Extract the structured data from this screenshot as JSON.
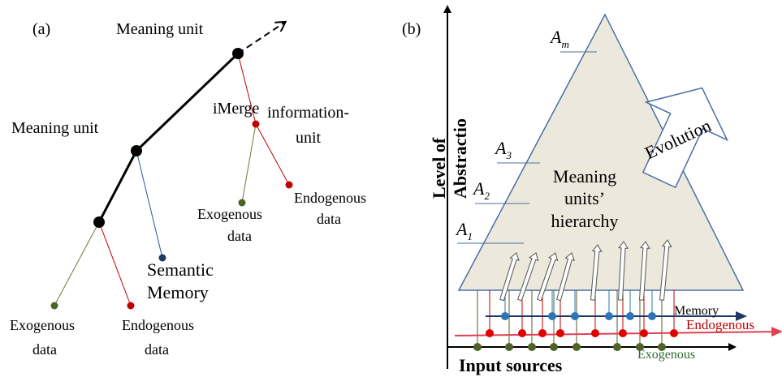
{
  "panel_a": {
    "label": "(a)",
    "top_meaning_unit": "Meaning unit",
    "left_meaning_unit": "Meaning unit",
    "imerge": "iMerge",
    "information_unit": [
      "information-",
      "unit"
    ],
    "endogenous_right": [
      "Endogenous",
      "data"
    ],
    "exogenous_right": [
      "Exogenous",
      "data"
    ],
    "semantic_memory": [
      "Semantic",
      "Memory"
    ],
    "exogenous_left": [
      "Exogenous",
      "data"
    ],
    "endogenous_left": [
      "Endogenous",
      "data"
    ]
  },
  "panel_b": {
    "label": "(b)",
    "y_axis": [
      "Level of",
      "Abstractio"
    ],
    "levels": [
      {
        "letter": "A",
        "sub": "m"
      },
      {
        "letter": "A",
        "sub": "3"
      },
      {
        "letter": "A",
        "sub": "2"
      },
      {
        "letter": "A",
        "sub": "1"
      }
    ],
    "hierarchy": [
      "Meaning",
      "units’",
      "hierarchy"
    ],
    "evolution": "Evolution",
    "memory": "Memory",
    "endogenous": "Endogenous",
    "exogenous": "Exogenous",
    "input_sources": "Input sources"
  }
}
